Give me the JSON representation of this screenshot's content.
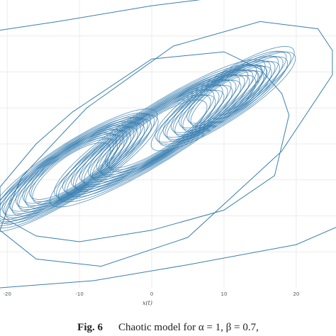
{
  "chart_data": {
    "type": "line",
    "xlabel": "x(t)",
    "x_ticks": [
      "-20",
      "-10",
      "0",
      "10",
      "20"
    ],
    "x_tick_values": [
      -20,
      -10,
      0,
      10,
      20
    ],
    "xlim": [
      -21,
      25.5
    ],
    "ylim": [
      -10,
      10
    ],
    "grid": true,
    "series_color": "#3a7fb0",
    "series": [
      {
        "description": "dense chaotic trajectory: stack of tilted ellipses plus outer transient polygon loops",
        "ellipses": [
          {
            "cx": -11,
            "cy": -1.8,
            "a": 12,
            "b": 1.6,
            "count": 22
          },
          {
            "cx": 1,
            "cy": 0.8,
            "a": 15,
            "b": 1.7,
            "count": 22
          },
          {
            "cx": 10,
            "cy": 3.2,
            "a": 10,
            "b": 1.4,
            "count": 16
          }
        ],
        "outer_loops": [
          [
            [
              -20,
              -4.6
            ],
            [
              -18,
              -2.3
            ],
            [
              -9,
              2.5
            ],
            [
              3,
              6.8
            ],
            [
              15,
              8.5
            ],
            [
              23,
              8.0
            ],
            [
              25,
              6.5
            ],
            [
              25,
              4.8
            ],
            [
              18,
              -0.5
            ],
            [
              5,
              -6.5
            ],
            [
              -7,
              -8.5
            ],
            [
              -16,
              -8.0
            ],
            [
              -21,
              -6.0
            ]
          ],
          [
            [
              -21,
              -3.0
            ],
            [
              -16,
              0.0
            ],
            [
              -11,
              2.2
            ],
            [
              0,
              5.9
            ],
            [
              10,
              6.4
            ],
            [
              15,
              5.2
            ],
            [
              18,
              3.5
            ],
            [
              19,
              2.0
            ],
            [
              17,
              -2.2
            ],
            [
              10,
              -4.6
            ],
            [
              0,
              -6.0
            ],
            [
              -10,
              -6.8
            ],
            [
              -16,
              -6.4
            ],
            [
              -21,
              -5.0
            ]
          ]
        ]
      }
    ]
  },
  "caption": {
    "label": "Fig. 6",
    "text": "Chaotic model for α = 1, β = 0.7,"
  }
}
